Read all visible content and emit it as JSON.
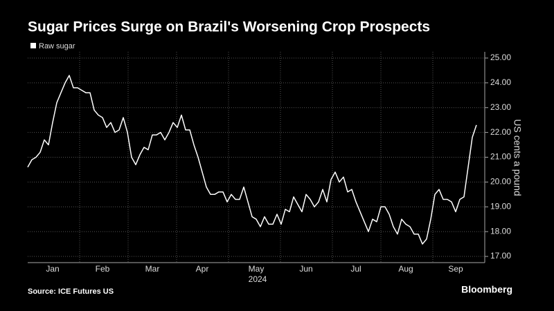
{
  "chart_data": {
    "type": "line",
    "title": "Sugar Prices Surge on Brazil's Worsening Crop Prospects",
    "y_label": "US cents a pound",
    "year_label": "2024",
    "source": "Source: ICE Futures US",
    "brand": "Bloomberg",
    "categories": [
      null,
      null,
      null,
      null,
      null,
      null,
      "Jan",
      null,
      null,
      null,
      null,
      null,
      null,
      null,
      null,
      null,
      null,
      null,
      "Feb",
      null,
      null,
      null,
      null,
      null,
      null,
      null,
      null,
      null,
      null,
      null,
      "Mar",
      null,
      null,
      null,
      null,
      null,
      null,
      null,
      null,
      null,
      null,
      null,
      "Apr",
      null,
      null,
      null,
      null,
      null,
      null,
      null,
      null,
      null,
      null,
      null,
      null,
      "May",
      null,
      null,
      null,
      null,
      null,
      null,
      null,
      null,
      null,
      null,
      null,
      "Jun",
      null,
      null,
      null,
      null,
      null,
      null,
      null,
      null,
      null,
      null,
      null,
      "Jul",
      null,
      null,
      null,
      null,
      null,
      null,
      null,
      null,
      null,
      null,
      null,
      "Aug",
      null,
      null,
      null,
      null,
      null,
      null,
      null,
      null,
      null,
      null,
      null,
      "Sep",
      null,
      null,
      null,
      null,
      null
    ],
    "series": [
      {
        "name": "Raw sugar",
        "color": "#ffffff",
        "values": [
          20.6,
          20.9,
          21.0,
          21.2,
          21.7,
          21.5,
          22.4,
          23.2,
          23.6,
          24.0,
          24.3,
          23.8,
          23.8,
          23.7,
          23.6,
          23.6,
          22.9,
          22.7,
          22.6,
          22.2,
          22.4,
          22.0,
          22.1,
          22.6,
          22.0,
          21.0,
          20.7,
          21.1,
          21.4,
          21.3,
          21.9,
          21.9,
          22.0,
          21.7,
          22.0,
          22.4,
          22.2,
          22.7,
          22.1,
          22.1,
          21.5,
          21.0,
          20.4,
          19.8,
          19.5,
          19.5,
          19.6,
          19.6,
          19.2,
          19.5,
          19.3,
          19.3,
          19.8,
          19.2,
          18.6,
          18.5,
          18.2,
          18.6,
          18.3,
          18.3,
          18.7,
          18.3,
          18.9,
          18.8,
          19.4,
          19.1,
          18.8,
          19.5,
          19.3,
          19.0,
          19.2,
          19.7,
          19.2,
          20.1,
          20.4,
          20.0,
          20.2,
          19.6,
          19.7,
          19.2,
          18.8,
          18.4,
          18.0,
          18.5,
          18.4,
          19.0,
          19.0,
          18.7,
          18.2,
          17.9,
          18.5,
          18.3,
          18.2,
          17.9,
          17.9,
          17.5,
          17.7,
          18.5,
          19.5,
          19.7,
          19.3,
          19.3,
          19.2,
          18.8,
          19.3,
          19.4,
          20.6,
          21.8,
          22.3
        ]
      }
    ],
    "ylim": [
      16.75,
      25.25
    ],
    "yticks": [
      {
        "value": 17,
        "label": "17.00"
      },
      {
        "value": 18,
        "label": "18.00"
      },
      {
        "value": 19,
        "label": "19.00"
      },
      {
        "value": 20,
        "label": "20.00"
      },
      {
        "value": 21,
        "label": "21.00"
      },
      {
        "value": 22,
        "label": "22.00"
      },
      {
        "value": 23,
        "label": "23.00"
      },
      {
        "value": 24,
        "label": "24.00"
      },
      {
        "value": 25,
        "label": "25.00"
      }
    ],
    "grid": true
  }
}
